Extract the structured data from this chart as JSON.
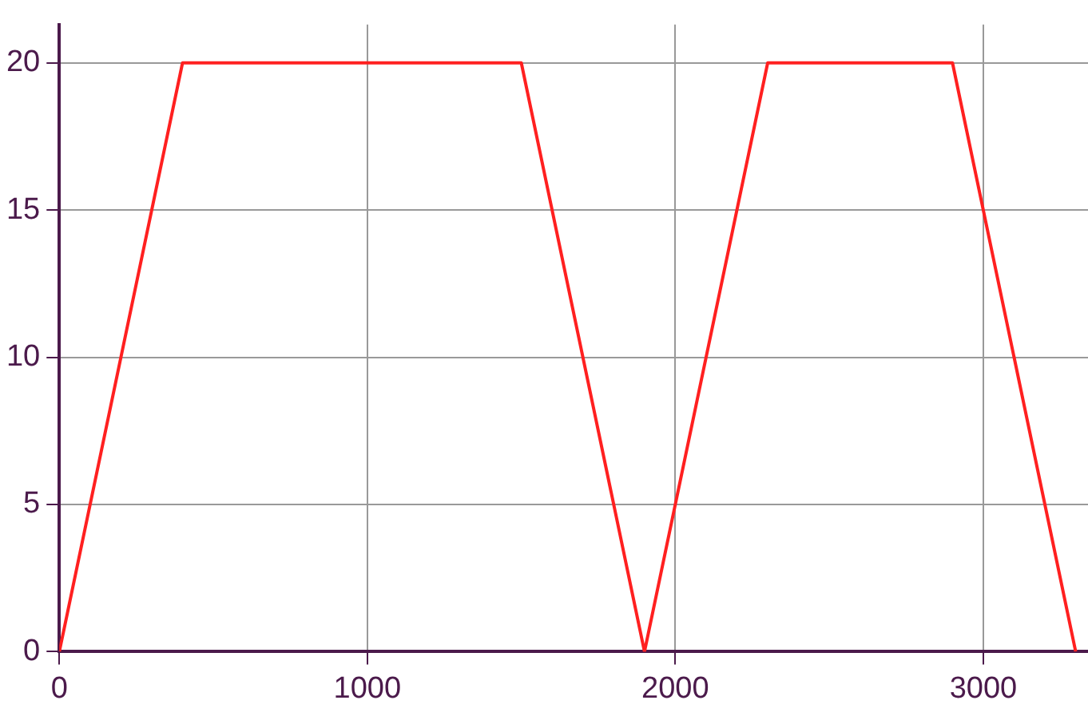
{
  "chart_data": {
    "type": "line",
    "x": [
      0,
      400,
      1500,
      1900,
      2300,
      2900,
      3300
    ],
    "series": [
      {
        "color": "#ff2020",
        "values": [
          0,
          20,
          20,
          0,
          20,
          20,
          0
        ]
      }
    ],
    "xlim": [
      0,
      3340
    ],
    "xticks": [
      0,
      1000,
      2000,
      3000
    ],
    "ylim": [
      0,
      21.3
    ],
    "yticks": [
      0,
      5,
      10,
      15,
      20
    ],
    "grid": true,
    "line_style": "solid",
    "marker": "none",
    "legend": false
  }
}
